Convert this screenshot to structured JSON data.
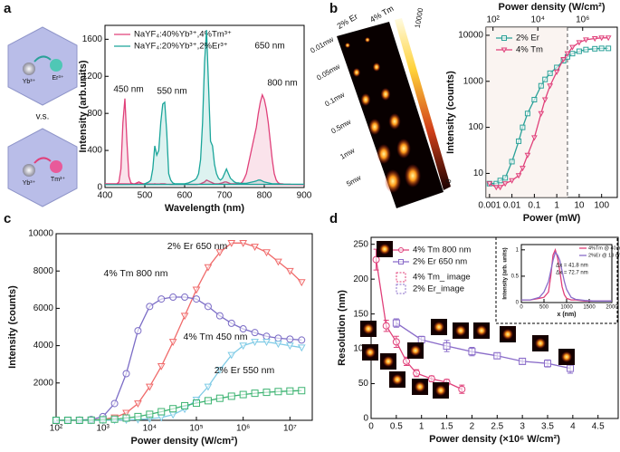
{
  "panel_labels": [
    "a",
    "b",
    "c",
    "d"
  ],
  "schematic": {
    "ions_top": [
      "Yb³⁺",
      "Er³⁺"
    ],
    "ions_bottom": [
      "Yb³⁺",
      "Tm³⁺"
    ],
    "versus": "v.s."
  },
  "image_stack": {
    "columns": [
      "2% Er",
      "4% Tm"
    ],
    "powers": [
      "0.01mw",
      "0.05mw",
      "0.1mw",
      "0.5mw",
      "1mw",
      "5mw"
    ],
    "colorbar_ticks": [
      0,
      10000
    ]
  },
  "chart_data": [
    {
      "type": "line",
      "xlabel": "Wavelength (nm)",
      "ylabel": "Intensity (arb.units)",
      "xlim": [
        400,
        900
      ],
      "xticks": [
        400,
        500,
        600,
        700,
        800,
        900
      ],
      "ylim": [
        0,
        1750
      ],
      "yticks": [
        0,
        400,
        800,
        1200,
        1600
      ],
      "legend": "upper left",
      "fill": true,
      "annotations": [
        {
          "text": "450 nm"
        },
        {
          "text": "550 nm"
        },
        {
          "text": "650 nm"
        },
        {
          "text": "800 nm"
        }
      ],
      "x": [
        400,
        405,
        410,
        415,
        420,
        425,
        430,
        435,
        440,
        445,
        450,
        455,
        460,
        465,
        470,
        475,
        480,
        485,
        490,
        495,
        500,
        505,
        510,
        515,
        520,
        525,
        530,
        535,
        540,
        545,
        550,
        555,
        560,
        565,
        570,
        575,
        580,
        585,
        590,
        595,
        600,
        605,
        610,
        615,
        620,
        625,
        630,
        635,
        640,
        645,
        650,
        655,
        660,
        665,
        670,
        675,
        680,
        685,
        690,
        695,
        700,
        705,
        710,
        715,
        720,
        725,
        730,
        735,
        740,
        745,
        750,
        755,
        760,
        765,
        770,
        775,
        780,
        785,
        790,
        795,
        800,
        805,
        810,
        815,
        820,
        825,
        830,
        835,
        840,
        845,
        850,
        855,
        860,
        865,
        870,
        875,
        880,
        885,
        890,
        895,
        900
      ],
      "series": [
        {
          "name": "NaYF₄:40%Yb³⁺,4%Tm³⁺",
          "color": "#e0407a",
          "values": [
            40,
            40,
            35,
            35,
            35,
            35,
            40,
            60,
            200,
            700,
            960,
            500,
            120,
            50,
            40,
            40,
            50,
            60,
            50,
            40,
            40,
            35,
            35,
            35,
            35,
            40,
            35,
            35,
            40,
            40,
            40,
            35,
            35,
            30,
            30,
            30,
            30,
            30,
            30,
            30,
            30,
            30,
            30,
            30,
            30,
            30,
            30,
            35,
            40,
            50,
            60,
            80,
            70,
            60,
            50,
            40,
            40,
            40,
            45,
            50,
            60,
            60,
            50,
            40,
            40,
            40,
            40,
            40,
            45,
            60,
            100,
            150,
            250,
            350,
            450,
            550,
            650,
            800,
            920,
            1000,
            950,
            850,
            700,
            500,
            300,
            150,
            80,
            50,
            40,
            40,
            35,
            35,
            35,
            35,
            30,
            30,
            30,
            30,
            30,
            30,
            30
          ]
        },
        {
          "name": "NaYF₄:20%Yb³⁺,2%Er³⁺",
          "color": "#1aa59a",
          "values": [
            30,
            30,
            30,
            30,
            30,
            30,
            30,
            30,
            30,
            30,
            30,
            30,
            30,
            30,
            30,
            30,
            30,
            30,
            30,
            30,
            40,
            50,
            60,
            80,
            200,
            450,
            350,
            400,
            700,
            900,
            920,
            600,
            150,
            80,
            50,
            40,
            40,
            40,
            40,
            40,
            40,
            45,
            50,
            60,
            70,
            80,
            100,
            150,
            300,
            700,
            1350,
            1700,
            1100,
            500,
            450,
            250,
            150,
            100,
            80,
            100,
            150,
            200,
            150,
            100,
            80,
            60,
            50,
            50,
            45,
            45,
            45,
            45,
            50,
            55,
            60,
            65,
            70,
            80,
            80,
            70,
            60,
            55,
            50,
            45,
            40,
            40,
            40,
            40,
            35,
            35,
            35,
            35,
            35,
            35,
            35,
            35,
            35,
            35,
            35,
            35,
            35
          ]
        }
      ]
    },
    {
      "type": "line",
      "xlabel": "Power (mW)",
      "ylabel": "Intensity (counts)",
      "x2label": "Power density (W/cm²)",
      "xscale": "log",
      "yscale": "log",
      "xlim": [
        0.0007,
        500
      ],
      "xticks": [
        0.001,
        0.01,
        0.1,
        1,
        10,
        100
      ],
      "x2lim": [
        49,
        35000000
      ],
      "x2ticks": [
        {
          "value": 100,
          "label": "10²"
        },
        {
          "value": 10000,
          "label": "10⁴"
        },
        {
          "value": 1000000,
          "label": "10⁶"
        }
      ],
      "ylim": [
        3,
        15000
      ],
      "yticks": [
        10,
        100,
        1000,
        10000
      ],
      "vline": 3,
      "legend": "upper left",
      "x": [
        0.001,
        0.002,
        0.003,
        0.005,
        0.01,
        0.02,
        0.03,
        0.05,
        0.1,
        0.2,
        0.3,
        0.5,
        1,
        2,
        3,
        5,
        10,
        20,
        50,
        100,
        200
      ],
      "series": [
        {
          "name": "2% Er",
          "color": "#2aa198",
          "marker": "square",
          "values": [
            6,
            6,
            7,
            8,
            18,
            50,
            100,
            200,
            400,
            800,
            1100,
            1500,
            2000,
            2800,
            3400,
            4000,
            4500,
            4900,
            5100,
            5200,
            5200
          ]
        },
        {
          "name": "4% Tm",
          "color": "#e0407a",
          "marker": "triangle-down",
          "values": [
            6,
            5,
            5,
            6,
            7,
            9,
            13,
            25,
            60,
            200,
            400,
            800,
            1600,
            3000,
            4000,
            5500,
            7000,
            8000,
            8500,
            8800,
            8800
          ]
        }
      ]
    },
    {
      "type": "line",
      "xlabel": "Power density (W/cm²)",
      "ylabel": "Intensity (counts)",
      "xscale": "log",
      "xlim": [
        100,
        30000000
      ],
      "xticks": [
        {
          "value": 100,
          "label": "10²"
        },
        {
          "value": 1000,
          "label": "10³"
        },
        {
          "value": 10000,
          "label": "10⁴"
        },
        {
          "value": 100000,
          "label": "10⁵"
        },
        {
          "value": 1000000,
          "label": "10⁶"
        },
        {
          "value": 10000000,
          "label": "10⁷"
        }
      ],
      "ylim": [
        0,
        10000
      ],
      "yticks": [
        2000,
        4000,
        6000,
        8000,
        10000
      ],
      "x": [
        100,
        178,
        316,
        562,
        1000,
        1778,
        3162,
        5623,
        10000,
        17783,
        31623,
        56234,
        100000,
        177828,
        316228,
        562341,
        1000000,
        1778279,
        3162278,
        5623413,
        10000000,
        17782794
      ],
      "series": [
        {
          "name": "2% Er 650 nm",
          "color": "#f06a6a",
          "marker": "triangle-down",
          "values": [
            0,
            0,
            0,
            20,
            50,
            150,
            400,
            900,
            1800,
            2900,
            4200,
            5600,
            7000,
            8200,
            9000,
            9500,
            9500,
            9300,
            9000,
            8500,
            8000,
            7400
          ]
        },
        {
          "name": "4% Tm 800 nm",
          "color": "#7b6cc6",
          "marker": "circle",
          "values": [
            0,
            0,
            10,
            40,
            200,
            900,
            2500,
            4800,
            6100,
            6500,
            6600,
            6600,
            6500,
            6100,
            5600,
            5200,
            4900,
            4700,
            4500,
            4400,
            4350,
            4300
          ]
        },
        {
          "name": "4% Tm 450 nm",
          "color": "#7fcbe6",
          "marker": "triangle-down",
          "values": [
            0,
            0,
            0,
            0,
            0,
            10,
            20,
            40,
            80,
            150,
            300,
            600,
            1100,
            1800,
            2700,
            3500,
            4000,
            4200,
            4200,
            4100,
            4000,
            3900
          ]
        },
        {
          "name": "2% Er 550 nm",
          "color": "#3cb371",
          "marker": "square",
          "values": [
            0,
            0,
            0,
            10,
            30,
            60,
            120,
            200,
            320,
            460,
            620,
            780,
            920,
            1050,
            1180,
            1290,
            1380,
            1450,
            1500,
            1540,
            1570,
            1590
          ]
        }
      ]
    },
    {
      "type": "scatter",
      "xlabel": "Power density (×10⁶ W/cm²)",
      "ylabel": "Resolution (nm)",
      "xlim": [
        0,
        4.9
      ],
      "xticks": [
        0,
        0.5,
        1,
        1.5,
        2,
        2.5,
        3,
        3.5,
        4,
        4.5
      ],
      "ylim": [
        0,
        260
      ],
      "yticks": [
        0,
        50,
        100,
        150,
        200,
        250
      ],
      "legend": "upper left",
      "series": [
        {
          "name": "4% Tm 800 nm",
          "color": "#e0407a",
          "marker": "circle",
          "x": [
            0.1,
            0.3,
            0.5,
            0.7,
            0.9,
            1.2,
            1.5,
            1.8
          ],
          "values": [
            228,
            133,
            110,
            82,
            65,
            57,
            52,
            42
          ],
          "errors": [
            15,
            8,
            8,
            6,
            5,
            4,
            4,
            6
          ]
        },
        {
          "name": "2% Er 650 nm",
          "color": "#8a6cc9",
          "marker": "square",
          "x": [
            0.5,
            1,
            1.5,
            2,
            2.5,
            3,
            3.5,
            3.95
          ],
          "values": [
            137,
            113,
            104,
            96,
            90,
            82,
            79,
            72
          ],
          "errors": [
            6,
            5,
            8,
            6,
            4,
            4,
            5,
            7
          ]
        }
      ],
      "image_legend": [
        {
          "name": "4% Tm_ image",
          "color": "#e0407a"
        },
        {
          "name": "2% Er_image",
          "color": "#8a6cc9"
        }
      ]
    },
    {
      "type": "line",
      "xlabel": "x (nm)",
      "ylabel": "Intensity (arb. units)",
      "legend": "upper right",
      "xlim": [
        0,
        2000
      ],
      "xticks": [
        0,
        500,
        1000,
        1500,
        2000
      ],
      "ylim": [
        0,
        1.1
      ],
      "yticks": [
        0,
        0.5,
        1
      ],
      "annotations": [
        {
          "text": "Δx = 41.8 nm",
          "color": "#e0407a"
        },
        {
          "text": "Δx = 72.7 nm",
          "color": "#8a6cc9"
        }
      ],
      "x": [
        0,
        200,
        400,
        500,
        600,
        650,
        700,
        750,
        800,
        850,
        900,
        950,
        1000,
        1100,
        1200,
        1400,
        1600,
        1800,
        2000
      ],
      "series": [
        {
          "name": "4%Tm @ 40 mW",
          "color": "#e0407a",
          "values": [
            0.05,
            0.05,
            0.08,
            0.1,
            0.2,
            0.5,
            0.9,
            1,
            0.85,
            0.6,
            0.3,
            0.15,
            0.08,
            0.05,
            0.05,
            0.03,
            0.03,
            0.03,
            0.03
          ]
        },
        {
          "name": "2%Er @ 18 mW",
          "color": "#8a6cc9",
          "values": [
            0.05,
            0.05,
            0.1,
            0.2,
            0.4,
            0.6,
            0.8,
            0.95,
            0.9,
            0.8,
            0.6,
            0.4,
            0.25,
            0.1,
            0.06,
            0.04,
            0.03,
            0.03,
            0.03
          ]
        }
      ]
    }
  ]
}
